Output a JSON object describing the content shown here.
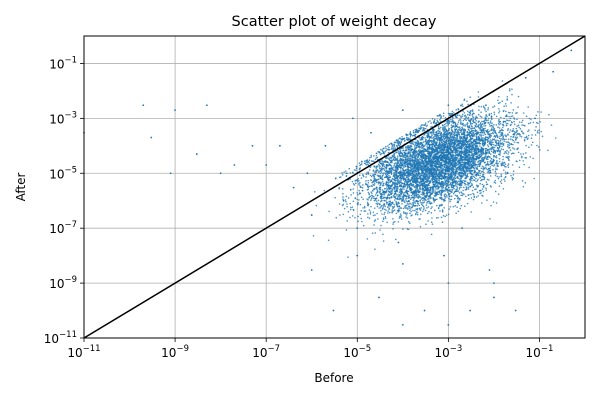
{
  "chart_data": {
    "type": "scatter",
    "title": "Scatter plot of weight decay",
    "xlabel": "Before",
    "ylabel": "After",
    "x_scale": "log",
    "y_scale": "log",
    "xlim": [
      1e-11,
      1
    ],
    "ylim": [
      1e-11,
      1
    ],
    "grid": true,
    "point_color": "#1f77b4",
    "line_color": "#000000",
    "x_ticks": [
      {
        "value": 1e-11,
        "base": "10",
        "exp": "−11"
      },
      {
        "value": 1e-09,
        "base": "10",
        "exp": "−9"
      },
      {
        "value": 1e-07,
        "base": "10",
        "exp": "−7"
      },
      {
        "value": 1e-05,
        "base": "10",
        "exp": "−5"
      },
      {
        "value": 0.001,
        "base": "10",
        "exp": "−3"
      },
      {
        "value": 0.1,
        "base": "10",
        "exp": "−1"
      }
    ],
    "y_ticks": [
      {
        "value": 1e-11,
        "base": "10",
        "exp": "−11"
      },
      {
        "value": 1e-09,
        "base": "10",
        "exp": "−9"
      },
      {
        "value": 1e-07,
        "base": "10",
        "exp": "−7"
      },
      {
        "value": 1e-05,
        "base": "10",
        "exp": "−5"
      },
      {
        "value": 0.001,
        "base": "10",
        "exp": "−3"
      },
      {
        "value": 0.1,
        "base": "10",
        "exp": "−1"
      }
    ],
    "reference_line": {
      "x": [
        1e-11,
        1
      ],
      "y": [
        1e-11,
        1
      ]
    },
    "series": [
      {
        "x": [
          1e-11,
          2e-10,
          3e-10,
          8e-10,
          1e-09,
          3e-09,
          5e-09,
          1e-08,
          2e-08,
          5e-08,
          1e-07,
          2e-07,
          4e-07,
          8e-07,
          1e-06,
          2e-06,
          5e-06,
          8e-06,
          1e-05,
          2e-05,
          5e-05,
          8e-05,
          0.0001,
          0.0002,
          0.0005,
          0.0008,
          0.001,
          0.002,
          0.005,
          0.008,
          0.01,
          0.02,
          0.05,
          0.08,
          0.1,
          0.2,
          0.5,
          1e-06,
          3e-06,
          1e-05,
          3e-05,
          0.0001,
          0.0003,
          0.001,
          0.003,
          0.01,
          0.03,
          0.0001,
          0.001,
          0.01
        ],
        "y": [
          0.0003,
          0.003,
          0.0002,
          1e-05,
          0.002,
          5e-05,
          0.003,
          1e-05,
          2e-05,
          0.0001,
          2e-05,
          0.0001,
          3e-06,
          1e-05,
          3e-07,
          0.0001,
          1e-06,
          0.001,
          1e-07,
          0.0003,
          1e-05,
          3e-08,
          0.002,
          1e-06,
          0.0001,
          1e-08,
          0.003,
          1e-07,
          0.0003,
          3e-09,
          0.01,
          1e-05,
          0.03,
          0.001,
          0.1,
          0.05,
          0.3,
          3e-09,
          1e-10,
          1e-08,
          3e-10,
          3e-11,
          1e-10,
          3e-11,
          1e-10,
          1e-09,
          1e-10,
          5e-09,
          1e-09,
          3e-10
        ]
      }
    ]
  }
}
